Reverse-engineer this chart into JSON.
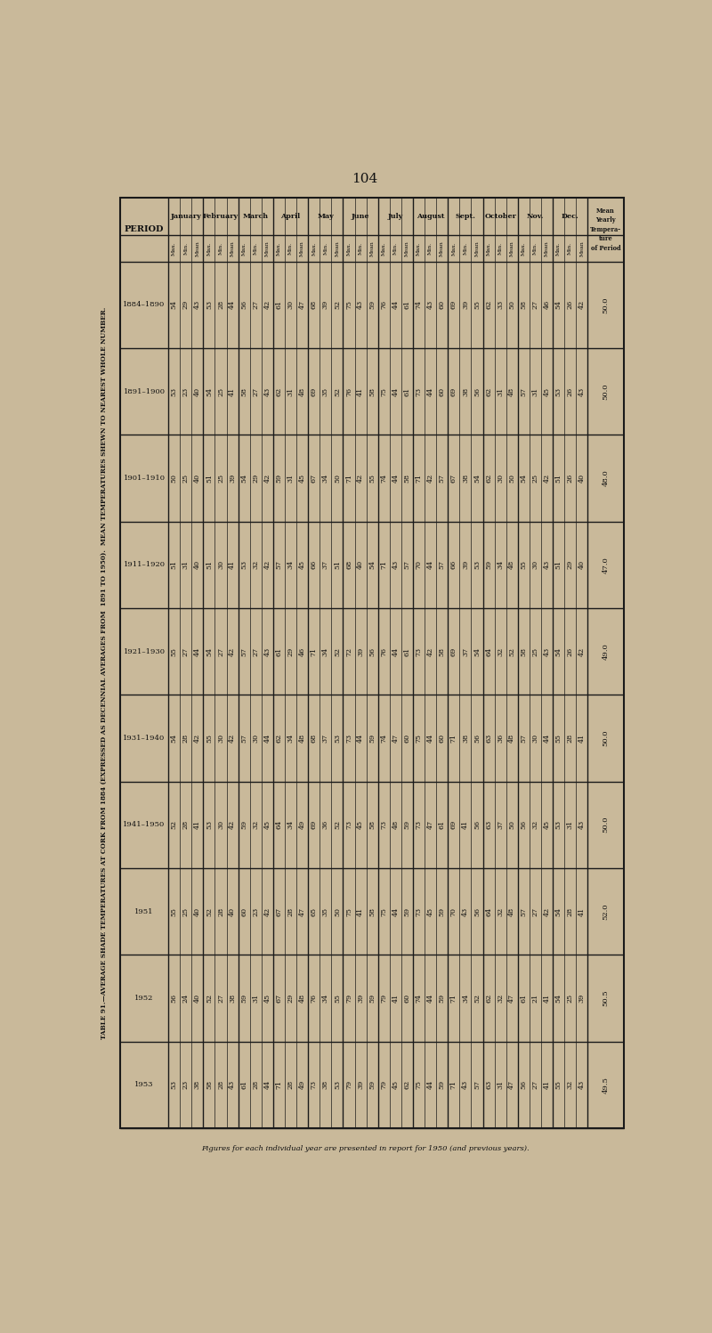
{
  "page_number": "104",
  "title_line1": "TABLE 91.—AVERAGE SHADE TEMPERATURES AT CORK FROM 1884 (EXPRESSED AS DECENNIAL AVERAGES FROM",
  "title_line2": "1891 TO 1950).  MEAN TEMPERATURES SHEWN TO NEAREST WHOLE NUMBER.",
  "footer": "Figures for each individual year are presented in report for 1950 (and previous years).",
  "periods": [
    "1884–1890",
    "1891–1900",
    "1901–1910",
    "1911–1920",
    "1921–1930",
    "1931–1940",
    "1941–1950",
    "1951",
    "1952",
    "1953"
  ],
  "months": [
    "January",
    "February",
    "March",
    "April",
    "May",
    "June",
    "July",
    "August",
    "Sept.",
    "October",
    "Nov.",
    "Dec."
  ],
  "sub_cols": [
    "Max.",
    "Min.",
    "Mean"
  ],
  "mean_yearly": [
    "50.0",
    "50.0",
    "48.0",
    "47.0",
    "49.0",
    "50.0",
    "50.0",
    "52.0",
    "50.5",
    "49.5"
  ],
  "data": {
    "January": {
      "Max.": [
        "54",
        "53",
        "50",
        "51",
        "55",
        "54",
        "52",
        "55",
        "56",
        "53"
      ],
      "Min.": [
        "29",
        "23",
        "25",
        "31",
        "27",
        "28",
        "28",
        "25",
        "24",
        "23"
      ],
      "Mean": [
        "43",
        "40",
        "40",
        "40",
        "44",
        "42",
        "41",
        "40",
        "40",
        "38"
      ]
    },
    "February": {
      "Max.": [
        "53",
        "54",
        "51",
        "51",
        "54",
        "55",
        "53",
        "52",
        "52",
        "58"
      ],
      "Min.": [
        "28",
        "25",
        "25",
        "30",
        "27",
        "30",
        "30",
        "28",
        "27",
        "28"
      ],
      "Mean": [
        "44",
        "41",
        "39",
        "41",
        "42",
        "42",
        "42",
        "40",
        "38",
        "43"
      ]
    },
    "March": {
      "Max.": [
        "56",
        "58",
        "54",
        "53",
        "57",
        "57",
        "59",
        "60",
        "59",
        "61"
      ],
      "Min.": [
        "27",
        "27",
        "29",
        "32",
        "27",
        "30",
        "32",
        "23",
        "31",
        "28"
      ],
      "Mean": [
        "42",
        "43",
        "42",
        "42",
        "43",
        "44",
        "45",
        "42",
        "45",
        "44"
      ]
    },
    "April": {
      "Max.": [
        "61",
        "62",
        "59",
        "57",
        "61",
        "62",
        "64",
        "67",
        "67",
        "71"
      ],
      "Min.": [
        "30",
        "31",
        "31",
        "34",
        "29",
        "34",
        "34",
        "28",
        "29",
        "28"
      ],
      "Mean": [
        "47",
        "48",
        "45",
        "45",
        "46",
        "48",
        "49",
        "47",
        "48",
        "49"
      ]
    },
    "May": {
      "Max.": [
        "68",
        "69",
        "67",
        "66",
        "71",
        "68",
        "69",
        "65",
        "76",
        "73"
      ],
      "Min.": [
        "39",
        "35",
        "34",
        "37",
        "34",
        "37",
        "36",
        "35",
        "34",
        "38"
      ],
      "Mean": [
        "52",
        "52",
        "50",
        "51",
        "52",
        "53",
        "52",
        "50",
        "55",
        "53"
      ]
    },
    "June": {
      "Max.": [
        "75",
        "76",
        "71",
        "68",
        "72",
        "73",
        "73",
        "75",
        "79",
        "79"
      ],
      "Min.": [
        "43",
        "41",
        "42",
        "40",
        "39",
        "44",
        "45",
        "41",
        "39",
        "39"
      ],
      "Mean": [
        "59",
        "58",
        "55",
        "54",
        "56",
        "59",
        "58",
        "58",
        "59",
        "59"
      ]
    },
    "July": {
      "Max.": [
        "76",
        "75",
        "74",
        "71",
        "76",
        "74",
        "73",
        "75",
        "79",
        "79"
      ],
      "Min.": [
        "44",
        "44",
        "44",
        "43",
        "44",
        "47",
        "48",
        "44",
        "41",
        "45"
      ],
      "Mean": [
        "61",
        "61",
        "58",
        "57",
        "61",
        "60",
        "59",
        "59",
        "60",
        "62"
      ]
    },
    "August": {
      "Max.": [
        "74",
        "73",
        "71",
        "70",
        "73",
        "75",
        "73",
        "73",
        "74",
        "75"
      ],
      "Min.": [
        "43",
        "44",
        "42",
        "44",
        "42",
        "44",
        "47",
        "45",
        "44",
        "44"
      ],
      "Mean": [
        "60",
        "60",
        "57",
        "57",
        "58",
        "60",
        "61",
        "59",
        "59",
        "59"
      ]
    },
    "Sept.": {
      "Max.": [
        "69",
        "69",
        "67",
        "66",
        "69",
        "71",
        "69",
        "70",
        "71",
        "71"
      ],
      "Min.": [
        "39",
        "38",
        "38",
        "39",
        "37",
        "38",
        "41",
        "43",
        "34",
        "43"
      ],
      "Mean": [
        "55",
        "56",
        "54",
        "53",
        "54",
        "56",
        "56",
        "56",
        "52",
        "57"
      ]
    },
    "October": {
      "Max.": [
        "62",
        "62",
        "62",
        "59",
        "64",
        "63",
        "63",
        "64",
        "62",
        "63"
      ],
      "Min.": [
        "33",
        "31",
        "30",
        "34",
        "32",
        "36",
        "37",
        "32",
        "32",
        "31"
      ],
      "Mean": [
        "50",
        "48",
        "50",
        "48",
        "52",
        "48",
        "50",
        "48",
        "47",
        "47"
      ]
    },
    "Nov.": {
      "Max.": [
        "58",
        "57",
        "54",
        "55",
        "58",
        "57",
        "56",
        "57",
        "61",
        "56"
      ],
      "Min.": [
        "27",
        "31",
        "25",
        "30",
        "25",
        "30",
        "32",
        "27",
        "21",
        "27"
      ],
      "Mean": [
        "46",
        "45",
        "42",
        "43",
        "43",
        "44",
        "45",
        "42",
        "41",
        "41"
      ]
    },
    "Dec.": {
      "Max.": [
        "54",
        "53",
        "51",
        "51",
        "54",
        "55",
        "53",
        "54",
        "54",
        "55"
      ],
      "Min.": [
        "26",
        "26",
        "26",
        "29",
        "26",
        "28",
        "31",
        "28",
        "25",
        "32"
      ],
      "Mean": [
        "42",
        "43",
        "40",
        "40",
        "42",
        "41",
        "43",
        "41",
        "39",
        "43"
      ]
    }
  },
  "bg_color": "#c9b99a",
  "text_color": "#111111",
  "line_color": "#1a1a1a"
}
